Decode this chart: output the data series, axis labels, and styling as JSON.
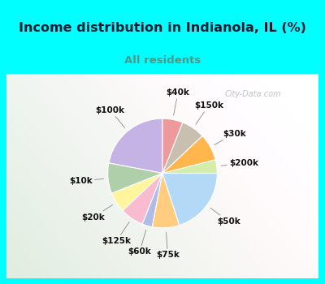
{
  "title": "Income distribution in Indianola, IL (%)",
  "subtitle": "All residents",
  "title_color": "#1a1a2e",
  "subtitle_color": "#4a9a8a",
  "background_outer": "#00ffff",
  "background_inner_tl": "#f0faf8",
  "background_inner_br": "#d0eedd",
  "watermark": "City-Data.com",
  "labels": [
    "$100k",
    "$10k",
    "$20k",
    "$125k",
    "$60k",
    "$75k",
    "$50k",
    "$200k",
    "$30k",
    "$150k",
    "$40k"
  ],
  "sizes": [
    22,
    9,
    6,
    7,
    3,
    8,
    20,
    4,
    8,
    7,
    6
  ],
  "colors": [
    "#c5b3e6",
    "#aecfaa",
    "#fff59d",
    "#f8bbd0",
    "#b0bce8",
    "#ffcc80",
    "#b3d9f7",
    "#d4edaa",
    "#ffb74d",
    "#c8bfb0",
    "#ef9a9a"
  ],
  "startangle": 90,
  "title_fontsize": 11.5,
  "subtitle_fontsize": 9.5,
  "label_fontsize": 7.5
}
